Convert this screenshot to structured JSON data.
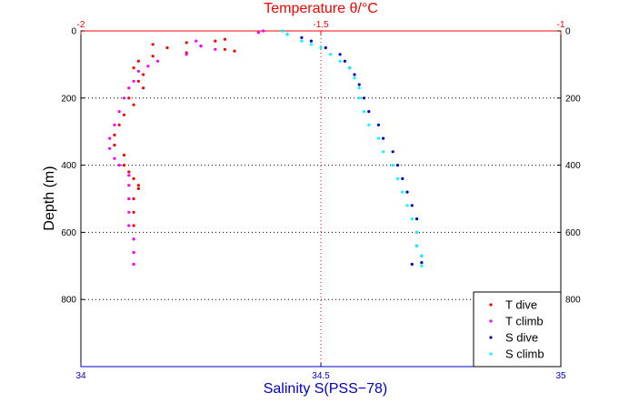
{
  "chart_data": {
    "type": "scatter",
    "title": "",
    "top_axis": {
      "label": "Temperature θ/°C",
      "range": [
        -2,
        -1
      ],
      "ticks": [
        "-2",
        "-1.5",
        "-1"
      ],
      "color": "#ff0000"
    },
    "bottom_axis": {
      "label": "Salinity S(PSS−78)",
      "range": [
        34,
        35
      ],
      "ticks": [
        "34",
        "34.5",
        "35"
      ],
      "color": "#0000cc"
    },
    "y_axis": {
      "label": "Depth (m)",
      "range": [
        0,
        1000
      ],
      "reversed": true,
      "ticks": [
        "0",
        "200",
        "400",
        "600",
        "800"
      ],
      "tick_values": [
        0,
        200,
        400,
        600,
        800
      ]
    },
    "grid": "dotted",
    "legend_position": "bottom-right",
    "series": [
      {
        "name": "T dive",
        "axis": "temperature",
        "color": "#ff0000",
        "points": [
          [
            -1.7,
            25
          ],
          [
            -1.72,
            30
          ],
          [
            -1.78,
            35
          ],
          [
            -1.85,
            40
          ],
          [
            -1.75,
            45
          ],
          [
            -1.82,
            50
          ],
          [
            -1.7,
            55
          ],
          [
            -1.68,
            60
          ],
          [
            -1.78,
            65
          ],
          [
            -1.85,
            75
          ],
          [
            -1.88,
            90
          ],
          [
            -1.89,
            110
          ],
          [
            -1.87,
            130
          ],
          [
            -1.88,
            150
          ],
          [
            -1.87,
            170
          ],
          [
            -1.9,
            200
          ],
          [
            -1.89,
            220
          ],
          [
            -1.91,
            250
          ],
          [
            -1.92,
            280
          ],
          [
            -1.93,
            310
          ],
          [
            -1.93,
            340
          ],
          [
            -1.91,
            370
          ],
          [
            -1.91,
            400
          ],
          [
            -1.9,
            420
          ],
          [
            -1.89,
            440
          ],
          [
            -1.88,
            460
          ],
          [
            -1.88,
            470
          ],
          [
            -1.89,
            500
          ],
          [
            -1.89,
            540
          ],
          [
            -1.89,
            580
          ],
          [
            -1.89,
            620
          ],
          [
            -1.89,
            660
          ],
          [
            -1.89,
            695
          ]
        ]
      },
      {
        "name": "T climb",
        "axis": "temperature",
        "color": "#ff00ff",
        "points": [
          [
            -1.62,
            0
          ],
          [
            -1.63,
            5
          ],
          [
            -1.76,
            30
          ],
          [
            -1.75,
            45
          ],
          [
            -1.72,
            55
          ],
          [
            -1.78,
            70
          ],
          [
            -1.84,
            90
          ],
          [
            -1.86,
            105
          ],
          [
            -1.88,
            120
          ],
          [
            -1.89,
            150
          ],
          [
            -1.9,
            170
          ],
          [
            -1.91,
            200
          ],
          [
            -1.92,
            240
          ],
          [
            -1.93,
            280
          ],
          [
            -1.94,
            320
          ],
          [
            -1.94,
            350
          ],
          [
            -1.93,
            380
          ],
          [
            -1.92,
            400
          ],
          [
            -1.9,
            430
          ],
          [
            -1.9,
            460
          ],
          [
            -1.9,
            500
          ],
          [
            -1.9,
            540
          ],
          [
            -1.9,
            580
          ],
          [
            -1.89,
            620
          ],
          [
            -1.89,
            660
          ],
          [
            -1.89,
            695
          ]
        ]
      },
      {
        "name": "S dive",
        "axis": "salinity",
        "color": "#0000cc",
        "points": [
          [
            34.42,
            0
          ],
          [
            34.43,
            10
          ],
          [
            34.46,
            20
          ],
          [
            34.48,
            30
          ],
          [
            34.51,
            50
          ],
          [
            34.54,
            70
          ],
          [
            34.55,
            90
          ],
          [
            34.56,
            110
          ],
          [
            34.57,
            130
          ],
          [
            34.58,
            160
          ],
          [
            34.59,
            200
          ],
          [
            34.6,
            240
          ],
          [
            34.62,
            280
          ],
          [
            34.63,
            320
          ],
          [
            34.65,
            360
          ],
          [
            34.66,
            400
          ],
          [
            34.67,
            440
          ],
          [
            34.68,
            480
          ],
          [
            34.69,
            520
          ],
          [
            34.7,
            560
          ],
          [
            34.7,
            600
          ],
          [
            34.7,
            640
          ],
          [
            34.71,
            670
          ],
          [
            34.71,
            690
          ],
          [
            34.69,
            695
          ]
        ]
      },
      {
        "name": "S climb",
        "axis": "salinity",
        "color": "#00ffff",
        "points": [
          [
            34.42,
            0
          ],
          [
            34.43,
            10
          ],
          [
            34.46,
            30
          ],
          [
            34.48,
            40
          ],
          [
            34.5,
            50
          ],
          [
            34.52,
            70
          ],
          [
            34.54,
            90
          ],
          [
            34.56,
            110
          ],
          [
            34.57,
            140
          ],
          [
            34.58,
            170
          ],
          [
            34.58,
            200
          ],
          [
            34.59,
            240
          ],
          [
            34.6,
            280
          ],
          [
            34.62,
            320
          ],
          [
            34.63,
            360
          ],
          [
            34.65,
            400
          ],
          [
            34.66,
            440
          ],
          [
            34.67,
            480
          ],
          [
            34.68,
            520
          ],
          [
            34.69,
            560
          ],
          [
            34.7,
            600
          ],
          [
            34.7,
            640
          ],
          [
            34.71,
            670
          ],
          [
            34.71,
            700
          ]
        ]
      }
    ]
  }
}
